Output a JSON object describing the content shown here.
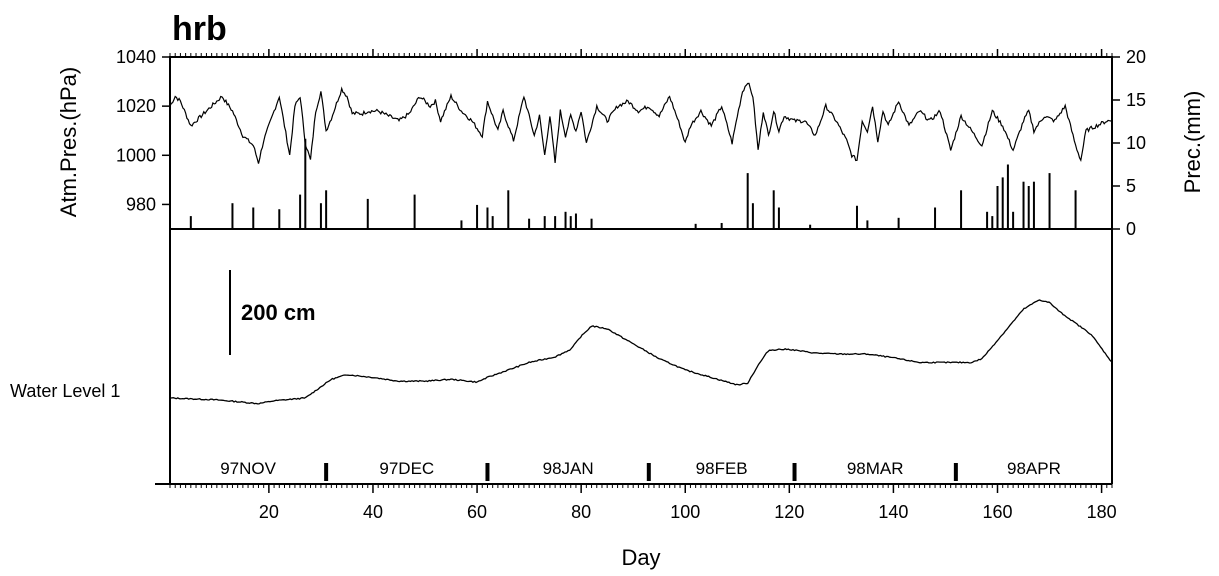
{
  "chart_data": {
    "type": "line",
    "title": "hrb",
    "xlabel": "Day",
    "xlim": [
      1,
      182
    ],
    "xticks": [
      20,
      40,
      60,
      80,
      100,
      120,
      140,
      160,
      180
    ],
    "left_ylabel": "Atm.Pres.(hPa)",
    "right_ylabel": "Prec.(mm)",
    "pressure_ylim": [
      970,
      1040
    ],
    "pressure_yticks": [
      980,
      1000,
      1020,
      1040
    ],
    "precip_ylim": [
      0,
      20
    ],
    "precip_yticks": [
      0,
      5,
      10,
      15,
      20
    ],
    "water_level_label": "Water Level 1",
    "scale_bar_label": "200 cm",
    "scale_bar_cm": 200,
    "months": [
      {
        "label": "97NOV",
        "start": 1,
        "end": 31
      },
      {
        "label": "97DEC",
        "start": 31,
        "end": 62
      },
      {
        "label": "98JAN",
        "start": 62,
        "end": 93
      },
      {
        "label": "98FEB",
        "start": 93,
        "end": 121
      },
      {
        "label": "98MAR",
        "start": 121,
        "end": 152
      },
      {
        "label": "98APR",
        "start": 152,
        "end": 182
      }
    ],
    "series": [
      {
        "name": "Atm.Pres.(hPa)",
        "axis": "left",
        "x": [
          1,
          2,
          3,
          5,
          7,
          9,
          11,
          13,
          15,
          17,
          18,
          19,
          21,
          22,
          23,
          24,
          25,
          26,
          27,
          28,
          29,
          30,
          31,
          32,
          34,
          35,
          36,
          37,
          38,
          39,
          41,
          43,
          45,
          47,
          49,
          51,
          52,
          53,
          55,
          57,
          59,
          61,
          62,
          63,
          64,
          65,
          67,
          69,
          71,
          72,
          73,
          74,
          75,
          76,
          77,
          78,
          79,
          80,
          81,
          83,
          85,
          87,
          89,
          91,
          93,
          95,
          97,
          99,
          100,
          101,
          103,
          105,
          107,
          109,
          110,
          111,
          112,
          113,
          114,
          115,
          116,
          117,
          118,
          119,
          121,
          123,
          125,
          127,
          129,
          131,
          132,
          133,
          134,
          135,
          136,
          137,
          138,
          139,
          141,
          143,
          145,
          147,
          149,
          151,
          153,
          155,
          157,
          159,
          161,
          163,
          165,
          166,
          167,
          169,
          171,
          173,
          175,
          176,
          177,
          179,
          181,
          182
        ],
        "values": [
          1020,
          1024,
          1022,
          1012,
          1016,
          1020,
          1024,
          1018,
          1008,
          1004,
          997,
          1006,
          1018,
          1024,
          1012,
          1000,
          1020,
          1024,
          1005,
          998,
          1018,
          1026,
          1010,
          1015,
          1027,
          1024,
          1017,
          1017,
          1017,
          1018,
          1018,
          1016,
          1014,
          1017,
          1024,
          1020,
          1022,
          1014,
          1024,
          1018,
          1014,
          1008,
          1022,
          1016,
          1010,
          1018,
          1006,
          1024,
          1008,
          1016,
          1000,
          1016,
          997,
          1018,
          1008,
          1016,
          1010,
          1018,
          1005,
          1020,
          1014,
          1020,
          1022,
          1018,
          1020,
          1016,
          1024,
          1012,
          1005,
          1012,
          1018,
          1012,
          1020,
          1005,
          1016,
          1026,
          1030,
          1024,
          1002,
          1018,
          1008,
          1018,
          1010,
          1016,
          1014,
          1014,
          1008,
          1020,
          1014,
          1006,
          1000,
          998,
          1014,
          1010,
          1020,
          1006,
          1018,
          1012,
          1022,
          1012,
          1018,
          1014,
          1018,
          1002,
          1016,
          1010,
          1004,
          1018,
          1012,
          1002,
          1014,
          1018,
          1010,
          1016,
          1014,
          1020,
          1004,
          998,
          1010,
          1012,
          1014,
          1014
        ]
      },
      {
        "name": "Prec.(mm)",
        "axis": "right",
        "x": [
          5,
          13,
          17,
          22,
          26,
          27,
          30,
          31,
          39,
          48,
          57,
          60,
          62,
          63,
          66,
          70,
          73,
          75,
          77,
          78,
          79,
          82,
          102,
          107,
          112,
          113,
          117,
          118,
          124,
          133,
          135,
          141,
          148,
          153,
          158,
          159,
          160,
          161,
          162,
          163,
          165,
          166,
          167,
          170,
          175
        ],
        "values": [
          1.5,
          3,
          2.5,
          2.3,
          4,
          10.5,
          3,
          4.5,
          3.5,
          4,
          1,
          2.8,
          2.5,
          1.5,
          4.5,
          1.2,
          1.5,
          1.5,
          2,
          1.5,
          1.8,
          1.2,
          0.6,
          0.7,
          6.5,
          3,
          4.5,
          2.5,
          0.5,
          2.7,
          1,
          1.3,
          2.5,
          4.5,
          2,
          1.5,
          5,
          6,
          7.5,
          2,
          5.5,
          5,
          5.5,
          6.5,
          4.5
        ]
      },
      {
        "name": "Water Level 1",
        "x": [
          1,
          10,
          18,
          21,
          27,
          32,
          35,
          40,
          45,
          50,
          55,
          60,
          62,
          65,
          70,
          75,
          78,
          80,
          82,
          85,
          90,
          95,
          100,
          105,
          110,
          112,
          114,
          116,
          118,
          120,
          125,
          130,
          135,
          140,
          145,
          150,
          155,
          157,
          159,
          162,
          165,
          168,
          170,
          172,
          175,
          178,
          182
        ],
        "values": [
          0,
          -2,
          -6,
          -3,
          0,
          20,
          25,
          22,
          18,
          18,
          20,
          17,
          22,
          28,
          38,
          44,
          52,
          66,
          77,
          74,
          58,
          42,
          30,
          22,
          14,
          16,
          35,
          51,
          52,
          52,
          48,
          47,
          47,
          43,
          38,
          38,
          38,
          42,
          55,
          75,
          95,
          105,
          102,
          92,
          80,
          68,
          38
        ]
      }
    ]
  }
}
